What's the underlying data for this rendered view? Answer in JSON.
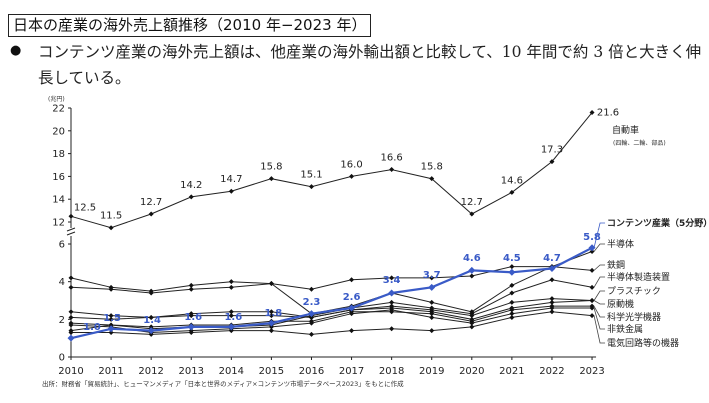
{
  "header": {
    "title": "日本の産業の海外売上額推移（2010 年−2023 年）",
    "bullet": "●",
    "summary": "コンテンツ産業の海外売上額は、他産業の海外輸出額と比較して、10 年間で約 3 倍と大きく伸長している。"
  },
  "chart_data": {
    "type": "line",
    "title": "",
    "ylabel": "(兆円)",
    "xlabel": "",
    "x": [
      "2010",
      "2011",
      "2012",
      "2013",
      "2014",
      "2015",
      "2016",
      "2017",
      "2018",
      "2019",
      "2020",
      "2021",
      "2022",
      "2023"
    ],
    "y_axis": {
      "broken": true,
      "lower_range": [
        0,
        6
      ],
      "upper_range": [
        12,
        22
      ],
      "lower_ticks": [
        "0",
        "2",
        "4",
        "6"
      ],
      "upper_ticks": [
        "12",
        "14",
        "16",
        "18",
        "20",
        "22"
      ]
    },
    "grid": false,
    "source": "出所：財務省「貿易統計」、ヒューマンメディア「日本と世界のメディア×コンテンツ市場データベース2023」をもとに作成",
    "series": [
      {
        "name": "自動車",
        "sublabel": "(四輪、二輪、部品)",
        "color": "#222222",
        "highlight": false,
        "labeled": true,
        "values": [
          12.5,
          11.5,
          12.7,
          14.2,
          14.7,
          15.8,
          15.1,
          16.0,
          16.6,
          15.8,
          12.7,
          14.6,
          17.3,
          21.6
        ]
      },
      {
        "name": "コンテンツ産業（5分野）",
        "color": "#3a5bc7",
        "highlight": true,
        "labeled": true,
        "values": [
          1.0,
          1.5,
          1.4,
          1.6,
          1.6,
          1.8,
          2.3,
          2.6,
          3.4,
          3.7,
          4.6,
          4.5,
          4.7,
          5.8
        ]
      },
      {
        "name": "半導体",
        "color": "#222222",
        "highlight": false,
        "labeled": false,
        "values": [
          4.2,
          3.7,
          3.5,
          3.8,
          4.0,
          3.9,
          3.6,
          4.1,
          4.2,
          4.2,
          4.3,
          4.8,
          4.8,
          5.6
        ]
      },
      {
        "name": "鉄鋼",
        "color": "#222222",
        "highlight": false,
        "labeled": false,
        "values": [
          3.7,
          3.6,
          3.4,
          3.6,
          3.7,
          3.9,
          2.3,
          2.7,
          3.4,
          2.9,
          2.4,
          3.8,
          4.8,
          4.6
        ]
      },
      {
        "name": "半導体製造装置",
        "color": "#222222",
        "highlight": false,
        "labeled": false,
        "values": [
          1.4,
          1.7,
          1.5,
          1.6,
          1.6,
          1.7,
          2.2,
          2.6,
          2.9,
          2.6,
          2.3,
          3.4,
          4.1,
          3.7
        ]
      },
      {
        "name": "プラスチック",
        "color": "#222222",
        "highlight": false,
        "labeled": false,
        "values": [
          2.4,
          2.2,
          2.1,
          2.3,
          2.4,
          2.4,
          2.1,
          2.5,
          2.7,
          2.5,
          2.2,
          2.9,
          3.1,
          3.0
        ]
      },
      {
        "name": "原動機",
        "color": "#222222",
        "highlight": false,
        "labeled": false,
        "values": [
          2.1,
          2.0,
          2.1,
          2.2,
          2.2,
          2.2,
          2.1,
          2.5,
          2.6,
          2.4,
          2.0,
          2.6,
          2.9,
          3.0
        ]
      },
      {
        "name": "科学光学機器",
        "color": "#222222",
        "highlight": false,
        "labeled": false,
        "values": [
          1.8,
          1.7,
          1.6,
          1.7,
          1.7,
          1.9,
          1.9,
          2.4,
          2.4,
          2.3,
          1.9,
          2.5,
          2.7,
          2.7
        ]
      },
      {
        "name": "非鉄金属",
        "color": "#222222",
        "highlight": false,
        "labeled": false,
        "values": [
          1.7,
          1.6,
          1.3,
          1.4,
          1.5,
          1.6,
          1.8,
          2.3,
          2.5,
          2.1,
          1.8,
          2.3,
          2.6,
          2.6
        ]
      },
      {
        "name": "電気回路等の機器",
        "color": "#222222",
        "highlight": false,
        "labeled": false,
        "values": [
          1.3,
          1.3,
          1.2,
          1.3,
          1.4,
          1.4,
          1.2,
          1.4,
          1.5,
          1.4,
          1.6,
          2.1,
          2.4,
          2.2
        ]
      }
    ]
  }
}
